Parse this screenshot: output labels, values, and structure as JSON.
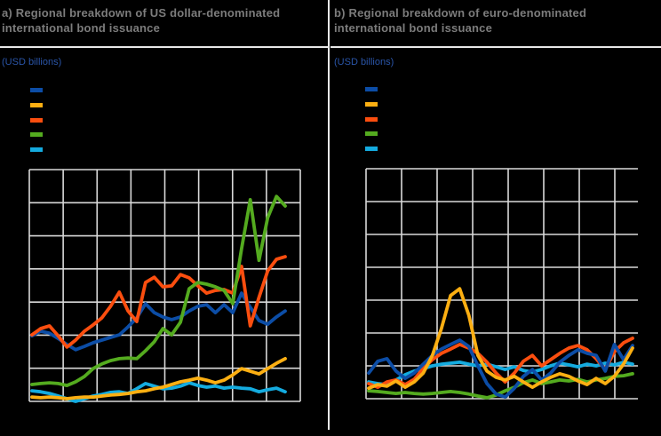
{
  "colors": {
    "background": "#000000",
    "title": "#7c7c7c",
    "units_label": "#2a55a8",
    "grid": "#d9d9d9",
    "divider": "#e8e8e8"
  },
  "panels": [
    {
      "id": "a",
      "title": "a) Regional breakdown of US dollar-denominated international bond issuance",
      "units_label": "(USD billions)",
      "chart_data": {
        "type": "line",
        "title": "Regional breakdown of US dollar-denominated international bond issuance",
        "ylabel": "USD billions",
        "xlabel": "",
        "x_tick_labels_visible": false,
        "y_tick_labels_visible": false,
        "grid": true,
        "grid_rows": 7,
        "grid_cols": 8,
        "ylim": [
          0,
          7
        ],
        "y_unit": "gridline divisions (numeric axis labels not visible in image)",
        "legend_position": "top-left",
        "legend_labels_visible": false,
        "n_points": 30,
        "series": [
          {
            "name": "dark blue",
            "color": "#0c4da6",
            "values": [
              1.98,
              2.12,
              2.06,
              1.9,
              1.72,
              1.56,
              1.66,
              1.77,
              1.85,
              1.93,
              2.01,
              2.25,
              2.52,
              2.95,
              2.68,
              2.55,
              2.47,
              2.55,
              2.73,
              2.87,
              2.92,
              2.68,
              2.92,
              2.68,
              3.27,
              2.84,
              2.44,
              2.33,
              2.55,
              2.73
            ]
          },
          {
            "name": "amber",
            "color": "#fcaf12",
            "values": [
              0.13,
              0.11,
              0.13,
              0.11,
              0.08,
              0.11,
              0.13,
              0.13,
              0.16,
              0.19,
              0.21,
              0.24,
              0.29,
              0.32,
              0.38,
              0.43,
              0.51,
              0.59,
              0.64,
              0.7,
              0.64,
              0.56,
              0.64,
              0.8,
              0.99,
              0.91,
              0.83,
              0.99,
              1.15,
              1.29
            ]
          },
          {
            "name": "orange red",
            "color": "#fb4e0f",
            "values": [
              2.01,
              2.2,
              2.28,
              1.98,
              1.64,
              1.85,
              2.12,
              2.31,
              2.52,
              2.87,
              3.3,
              2.73,
              2.41,
              3.59,
              3.75,
              3.46,
              3.49,
              3.83,
              3.73,
              3.49,
              3.27,
              3.35,
              3.38,
              3.27,
              4.08,
              2.28,
              3.14,
              3.94,
              4.29,
              4.37
            ]
          },
          {
            "name": "green",
            "color": "#54ab1f",
            "values": [
              0.51,
              0.54,
              0.56,
              0.54,
              0.48,
              0.59,
              0.75,
              0.99,
              1.13,
              1.23,
              1.29,
              1.31,
              1.29,
              1.53,
              1.8,
              2.2,
              2.01,
              2.39,
              3.4,
              3.59,
              3.54,
              3.46,
              3.35,
              2.95,
              4.61,
              6.09,
              4.26,
              5.55,
              6.19,
              5.9
            ]
          },
          {
            "name": "light blue",
            "color": "#14abdf",
            "values": [
              0.32,
              0.29,
              0.24,
              0.16,
              0.08,
              0.0,
              0.08,
              0.16,
              0.21,
              0.27,
              0.29,
              0.24,
              0.38,
              0.54,
              0.46,
              0.38,
              0.4,
              0.46,
              0.56,
              0.48,
              0.43,
              0.46,
              0.4,
              0.43,
              0.4,
              0.38,
              0.29,
              0.35,
              0.4,
              0.29
            ]
          }
        ]
      }
    },
    {
      "id": "b",
      "title": "b) Regional breakdown of euro-denominated international bond issuance",
      "units_label": "(USD billions)",
      "chart_data": {
        "type": "line",
        "title": "Regional breakdown of euro-denominated international bond issuance",
        "ylabel": "USD billions",
        "xlabel": "",
        "x_tick_labels_visible": false,
        "y_tick_labels_visible": false,
        "grid": true,
        "grid_rows": 7,
        "grid_cols": 7,
        "ylim": [
          0,
          7
        ],
        "y_unit": "gridline divisions (numeric axis labels not visible in image)",
        "legend_position": "top-left",
        "legend_labels_visible": false,
        "n_points": 30,
        "series": [
          {
            "name": "dark blue",
            "color": "#0c4da6",
            "values": [
              0.78,
              1.14,
              1.22,
              0.84,
              0.62,
              0.78,
              1.05,
              1.32,
              1.51,
              1.65,
              1.78,
              1.59,
              1.0,
              0.46,
              0.14,
              0.05,
              0.32,
              0.68,
              0.89,
              0.57,
              0.78,
              1.11,
              1.32,
              1.49,
              1.38,
              1.32,
              0.84,
              1.65,
              1.19,
              1.62
            ]
          },
          {
            "name": "amber",
            "color": "#fcaf12",
            "values": [
              0.32,
              0.43,
              0.38,
              0.54,
              0.35,
              0.51,
              0.78,
              1.32,
              2.14,
              3.14,
              3.35,
              2.54,
              1.32,
              0.84,
              0.65,
              0.57,
              0.68,
              0.51,
              0.35,
              0.51,
              0.65,
              0.76,
              0.68,
              0.54,
              0.43,
              0.62,
              0.46,
              0.68,
              1.05,
              1.54
            ]
          },
          {
            "name": "orange red",
            "color": "#fb4e0f",
            "values": [
              0.46,
              0.35,
              0.51,
              0.57,
              0.43,
              0.59,
              0.92,
              1.19,
              1.38,
              1.51,
              1.65,
              1.54,
              1.38,
              1.11,
              0.78,
              0.51,
              0.78,
              1.14,
              1.32,
              1.0,
              1.19,
              1.38,
              1.54,
              1.62,
              1.49,
              1.22,
              0.89,
              1.43,
              1.7,
              1.84
            ]
          },
          {
            "name": "green",
            "color": "#54ab1f",
            "values": [
              0.24,
              0.22,
              0.19,
              0.16,
              0.19,
              0.16,
              0.14,
              0.16,
              0.19,
              0.22,
              0.19,
              0.14,
              0.08,
              0.03,
              0.11,
              0.24,
              0.35,
              0.49,
              0.57,
              0.46,
              0.51,
              0.57,
              0.54,
              0.59,
              0.51,
              0.57,
              0.62,
              0.68,
              0.7,
              0.76
            ]
          },
          {
            "name": "light blue",
            "color": "#14abdf",
            "values": [
              0.51,
              0.46,
              0.43,
              0.57,
              0.73,
              0.84,
              0.92,
              1.0,
              1.05,
              1.08,
              1.11,
              1.05,
              1.0,
              1.05,
              0.97,
              0.89,
              0.97,
              0.86,
              0.81,
              0.89,
              1.0,
              1.08,
              1.03,
              0.97,
              1.05,
              1.0,
              1.08,
              1.03,
              1.11,
              1.05
            ]
          }
        ]
      }
    }
  ]
}
